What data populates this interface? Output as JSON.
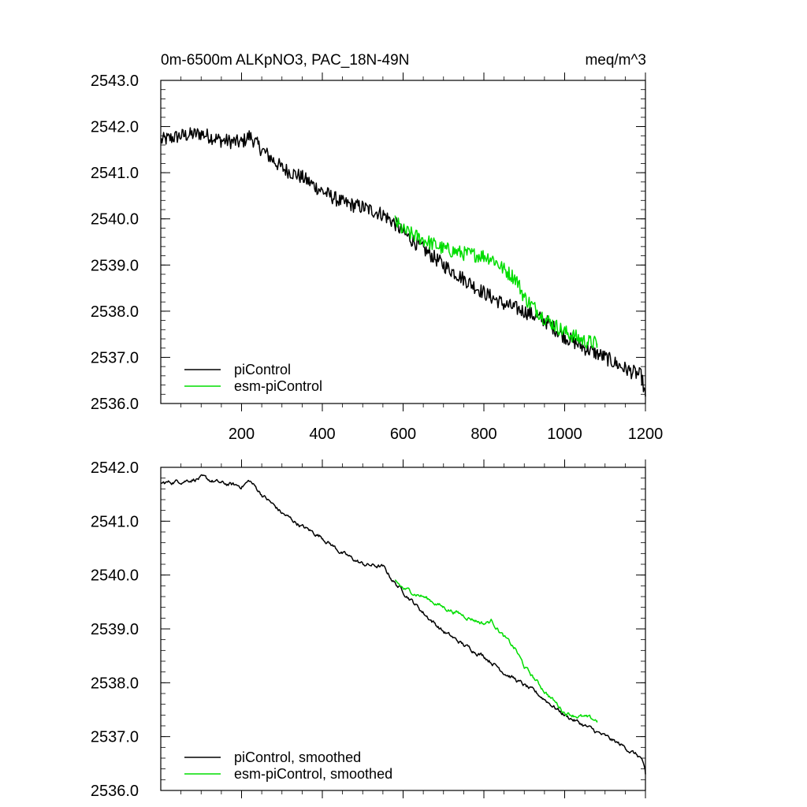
{
  "chart_data": [
    {
      "type": "line",
      "title_left": "0m-6500m ALKpNO3, PAC_18N-49N",
      "title_right": "meq/m^3",
      "xlim": [
        0,
        1200
      ],
      "ylim": [
        2536.0,
        2543.0
      ],
      "xticks": [
        200,
        400,
        600,
        800,
        1000,
        1200
      ],
      "yticks": [
        2536.0,
        2537.0,
        2538.0,
        2539.0,
        2540.0,
        2541.0,
        2542.0,
        2543.0
      ],
      "ytick_labels": [
        "2536.0",
        "2537.0",
        "2538.0",
        "2539.0",
        "2540.0",
        "2541.0",
        "2542.0",
        "2543.0"
      ],
      "xtick_labels": [
        "200",
        "400",
        "600",
        "800",
        "1000",
        "1200"
      ],
      "legend": [
        "piControl",
        "esm-piControl"
      ],
      "series": [
        {
          "name": "piControl",
          "color": "#000000",
          "x": [
            1,
            50,
            100,
            150,
            200,
            220,
            250,
            300,
            350,
            400,
            450,
            500,
            550,
            580,
            600,
            650,
            700,
            750,
            800,
            850,
            900,
            950,
            1000,
            1050,
            1100,
            1150,
            1190,
            1200
          ],
          "y": [
            2541.7,
            2541.8,
            2541.85,
            2541.7,
            2541.65,
            2541.8,
            2541.5,
            2541.1,
            2540.9,
            2540.6,
            2540.35,
            2540.25,
            2540.1,
            2539.9,
            2539.7,
            2539.35,
            2539.0,
            2538.7,
            2538.4,
            2538.15,
            2538.0,
            2537.8,
            2537.45,
            2537.2,
            2537.0,
            2536.75,
            2536.6,
            2536.15
          ]
        },
        {
          "name": "esm-piControl",
          "color": "#00dd00",
          "x": [
            580,
            600,
            650,
            700,
            750,
            800,
            820,
            850,
            880,
            900,
            950,
            1000,
            1050,
            1080
          ],
          "y": [
            2539.95,
            2539.75,
            2539.55,
            2539.35,
            2539.25,
            2539.2,
            2539.15,
            2538.9,
            2538.7,
            2538.3,
            2537.85,
            2537.55,
            2537.35,
            2537.3
          ]
        }
      ]
    },
    {
      "type": "line",
      "xlim": [
        0,
        1200
      ],
      "ylim": [
        2536.0,
        2542.0
      ],
      "xticks": [
        200,
        400,
        600,
        800,
        1000,
        1200
      ],
      "yticks": [
        2536.0,
        2537.0,
        2538.0,
        2539.0,
        2540.0,
        2541.0,
        2542.0
      ],
      "ytick_labels": [
        "2536.0",
        "2537.0",
        "2538.0",
        "2539.0",
        "2540.0",
        "2541.0",
        "2542.0"
      ],
      "legend": [
        "piControl, smoothed",
        "esm-piControl, smoothed"
      ],
      "series": [
        {
          "name": "piControl, smoothed",
          "color": "#000000",
          "x": [
            1,
            50,
            100,
            150,
            200,
            220,
            250,
            300,
            350,
            400,
            450,
            500,
            550,
            580,
            600,
            650,
            700,
            750,
            800,
            850,
            900,
            950,
            1000,
            1050,
            1100,
            1150,
            1190,
            1200
          ],
          "y": [
            2541.7,
            2541.75,
            2541.8,
            2541.7,
            2541.65,
            2541.75,
            2541.5,
            2541.15,
            2540.9,
            2540.7,
            2540.4,
            2540.2,
            2540.15,
            2539.85,
            2539.7,
            2539.3,
            2538.95,
            2538.7,
            2538.5,
            2538.2,
            2537.95,
            2537.7,
            2537.4,
            2537.2,
            2537.0,
            2536.8,
            2536.6,
            2536.3
          ]
        },
        {
          "name": "esm-piControl, smoothed",
          "color": "#00dd00",
          "x": [
            580,
            600,
            650,
            700,
            750,
            800,
            820,
            850,
            880,
            900,
            950,
            1000,
            1050,
            1080
          ],
          "y": [
            2539.9,
            2539.75,
            2539.6,
            2539.4,
            2539.25,
            2539.1,
            2539.15,
            2538.85,
            2538.6,
            2538.3,
            2537.85,
            2537.45,
            2537.35,
            2537.3
          ]
        }
      ]
    }
  ]
}
